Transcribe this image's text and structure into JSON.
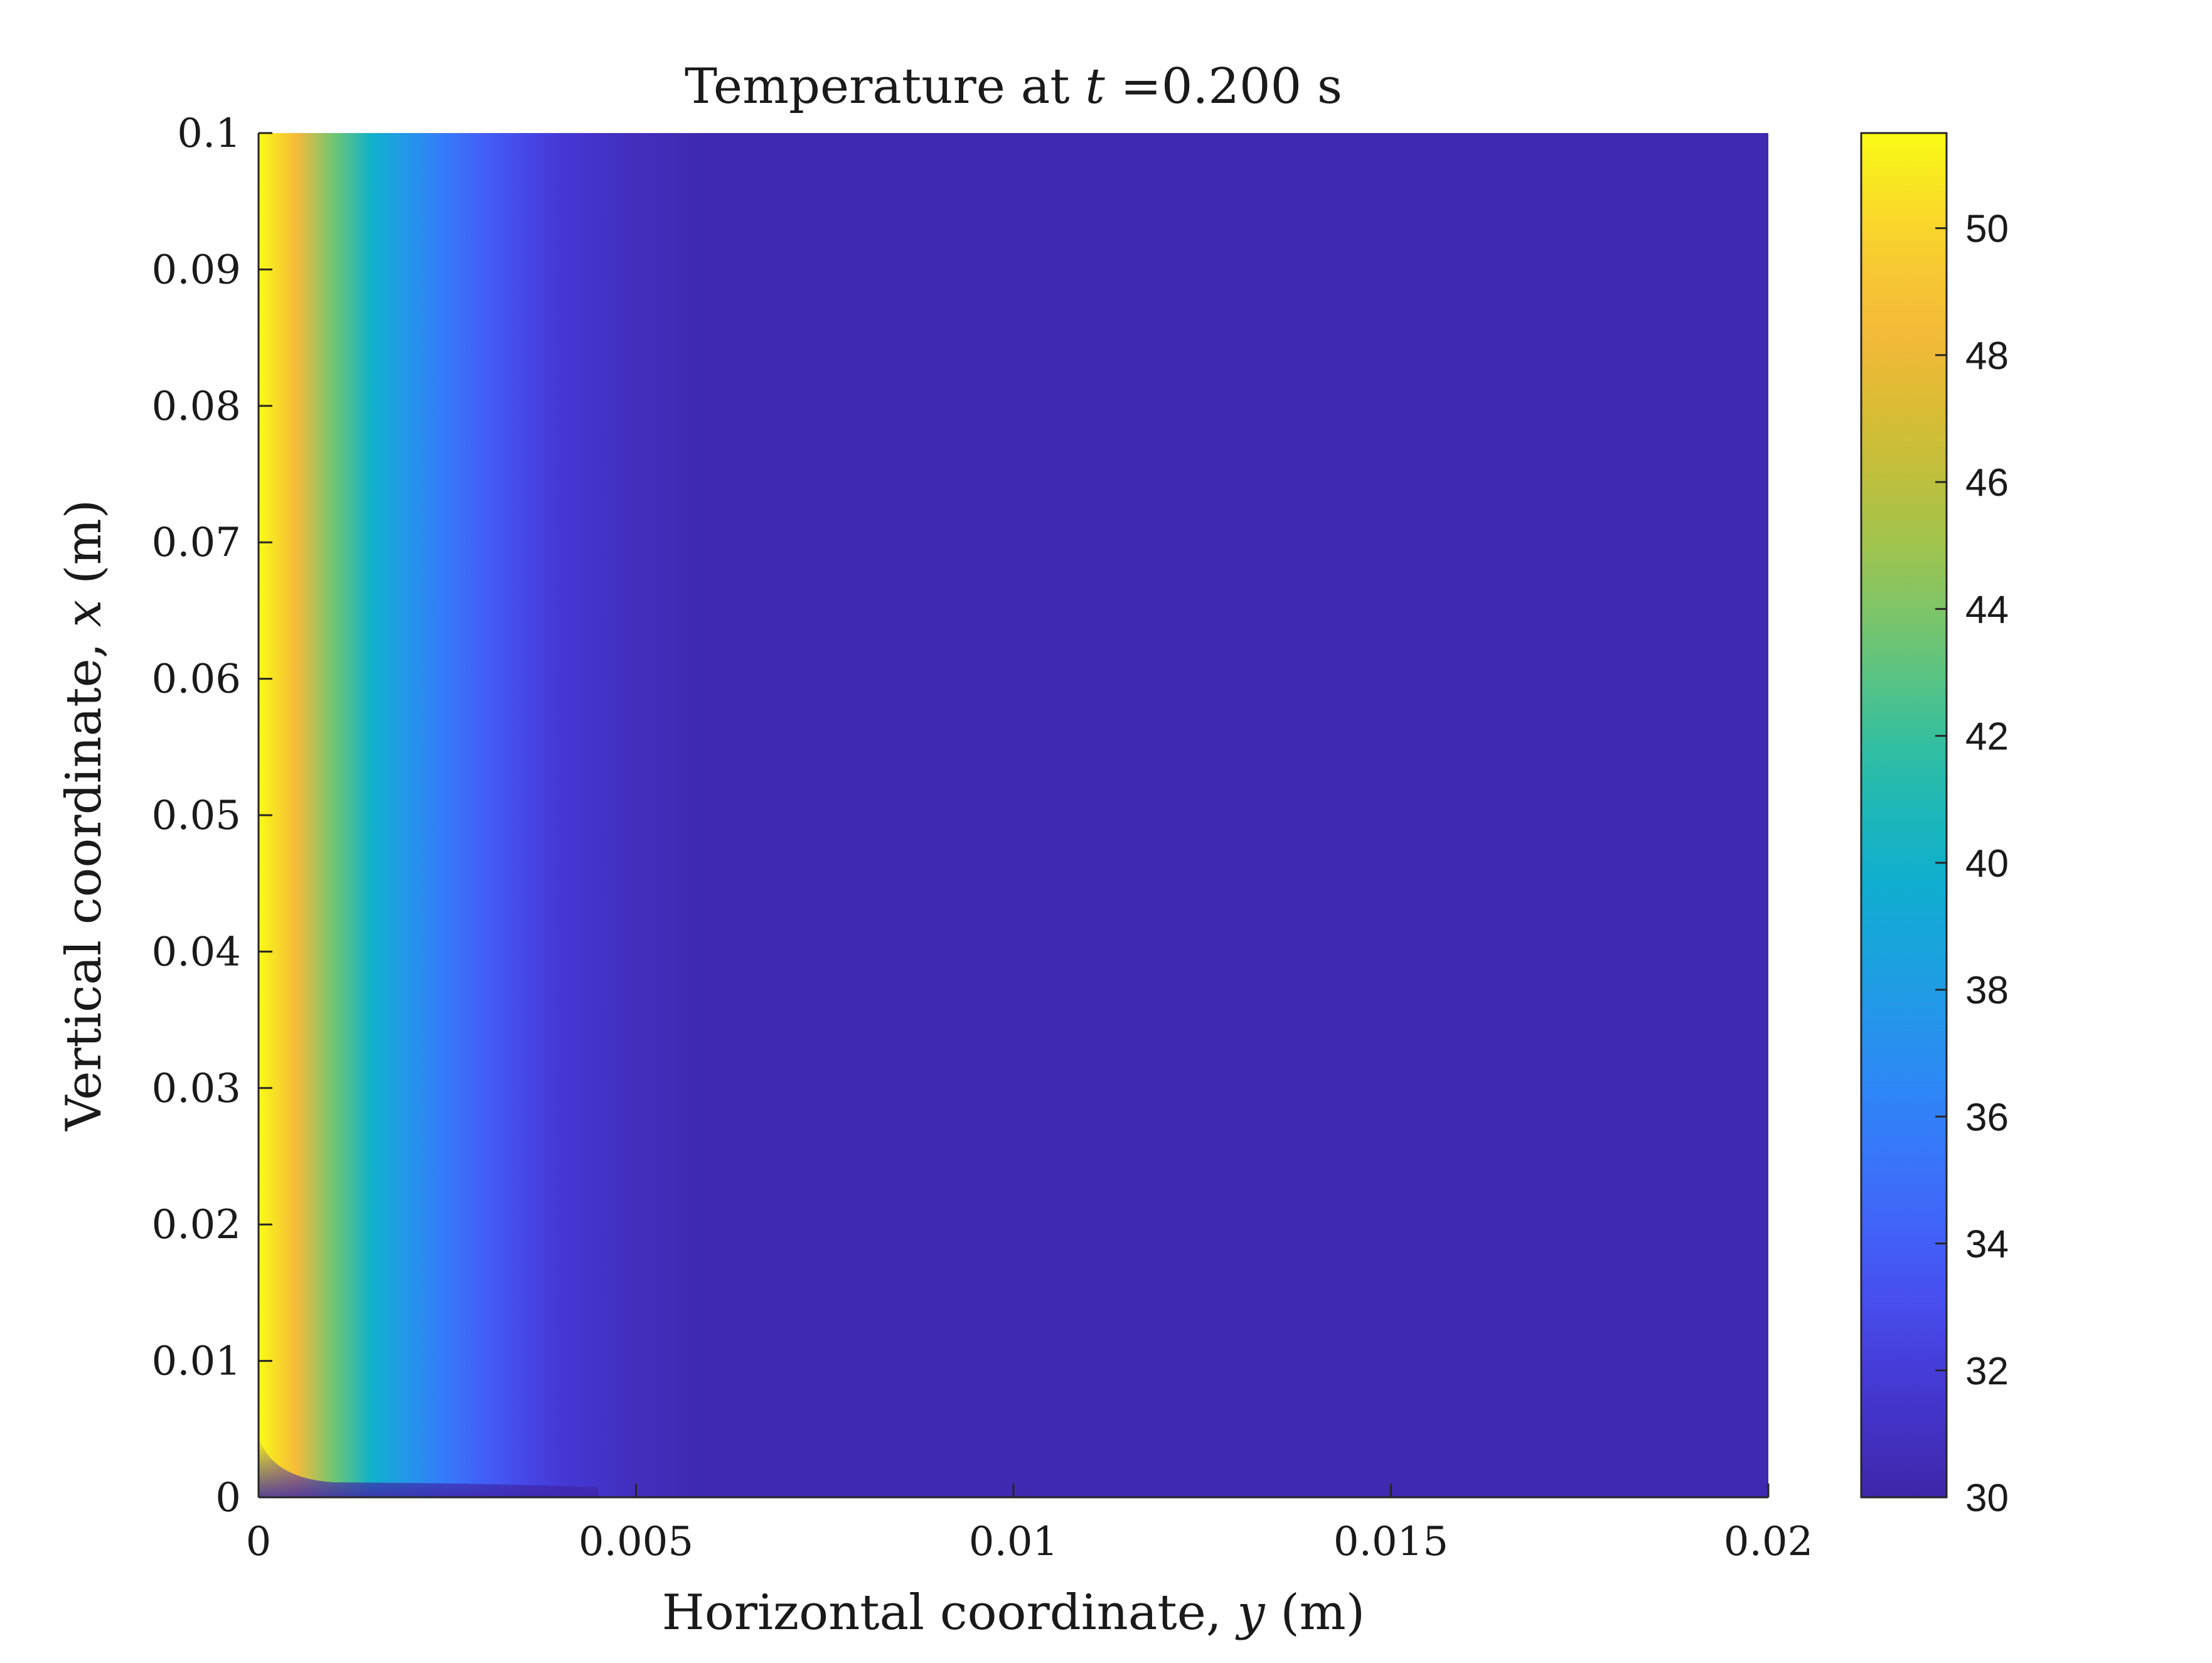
{
  "chart_data": {
    "type": "heatmap",
    "title_prefix": "Temperature at ",
    "title_var": "t",
    "title_suffix": " =0.200 s",
    "xlabel_prefix": "Horizontal coordinate, ",
    "xlabel_var": "y",
    "xlabel_suffix": " (m)",
    "ylabel_prefix": "Vertical coordinate, ",
    "ylabel_var": "x",
    "ylabel_suffix": " (m)",
    "xlim": [
      0,
      0.02
    ],
    "ylim": [
      0,
      0.1
    ],
    "xticks": [
      0,
      0.005,
      0.01,
      0.015,
      0.02
    ],
    "xtick_labels": [
      "0",
      "0.005",
      "0.01",
      "0.015",
      "0.02"
    ],
    "yticks": [
      0,
      0.01,
      0.02,
      0.03,
      0.04,
      0.05,
      0.06,
      0.07,
      0.08,
      0.09,
      0.1
    ],
    "ytick_labels": [
      "0",
      "0.01",
      "0.02",
      "0.03",
      "0.04",
      "0.05",
      "0.06",
      "0.07",
      "0.08",
      "0.09",
      "0.1"
    ],
    "colorbar": {
      "clim": [
        30,
        51.5
      ],
      "ticks": [
        30,
        32,
        34,
        36,
        38,
        40,
        42,
        44,
        46,
        48,
        50
      ],
      "tick_labels": [
        "30",
        "32",
        "34",
        "36",
        "38",
        "40",
        "42",
        "44",
        "46",
        "48",
        "50"
      ],
      "colormap": "parula"
    },
    "temperature_profile_y": [
      0,
      0.0005,
      0.001,
      0.0015,
      0.002,
      0.0025,
      0.003,
      0.0035,
      0.004,
      0.005,
      0.006,
      0.02
    ],
    "temperature_profile_T": [
      51.5,
      48.5,
      43.5,
      40,
      37.5,
      35.5,
      34,
      32.8,
      31.8,
      30.8,
      30.3,
      30.3
    ],
    "grid": false
  }
}
